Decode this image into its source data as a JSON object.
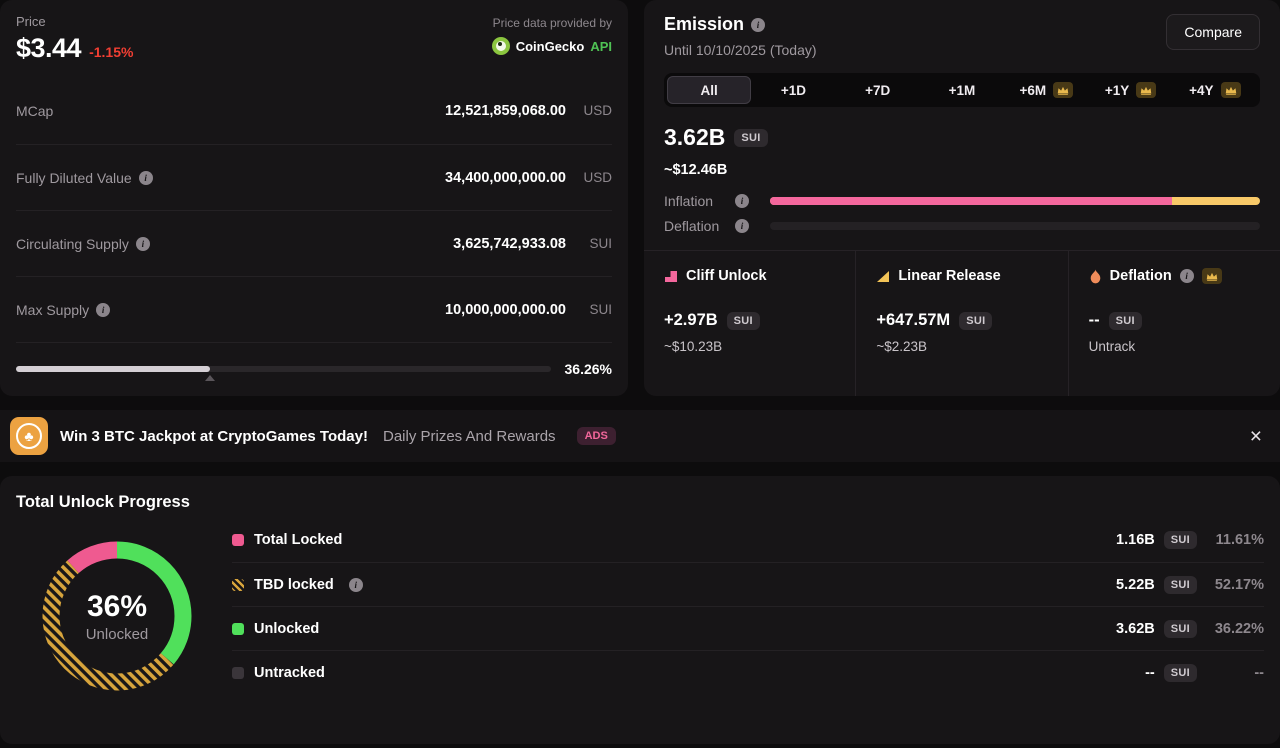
{
  "colors": {
    "pink": "#f4679d",
    "yellow": "#f8c968",
    "green": "#50e05b",
    "gold": "#d7a43c",
    "red": "#f23f33",
    "ads_pink": "#f2679b",
    "api_green": "#4fc254"
  },
  "price_card": {
    "label": "Price",
    "value": "$3.44",
    "change": "-1.15%",
    "provider": {
      "note": "Price data provided by",
      "name": "CoinGecko",
      "suffix": "API"
    },
    "rows": [
      {
        "label": "MCap",
        "value": "12,521,859,068.00",
        "unit": "USD"
      },
      {
        "label": "Fully Diluted Value",
        "value": "34,400,000,000.00",
        "unit": "USD"
      },
      {
        "label": "Circulating Supply",
        "value": "3,625,742,933.08",
        "unit": "SUI"
      },
      {
        "label": "Max Supply",
        "value": "10,000,000,000.00",
        "unit": "SUI"
      }
    ],
    "progress": {
      "percent": 36.26,
      "label": "36.26%"
    }
  },
  "emission_card": {
    "title": "Emission",
    "subtitle": "Until 10/10/2025 (Today)",
    "compare_label": "Compare",
    "tabs": [
      {
        "label": "All",
        "selected": true,
        "premium": false
      },
      {
        "label": "+1D",
        "selected": false,
        "premium": false
      },
      {
        "label": "+7D",
        "selected": false,
        "premium": false
      },
      {
        "label": "+1M",
        "selected": false,
        "premium": false
      },
      {
        "label": "+6M",
        "selected": false,
        "premium": true
      },
      {
        "label": "+1Y",
        "selected": false,
        "premium": true
      },
      {
        "label": "+4Y",
        "selected": false,
        "premium": true
      }
    ],
    "amount": "3.62B",
    "unit": "SUI",
    "usd": "~$12.46B",
    "inflation_label": "Inflation",
    "deflation_label": "Deflation",
    "inflation_bar": {
      "pink_percent": 82,
      "yellow_percent": 18
    },
    "stats": [
      {
        "title": "Cliff Unlock",
        "value": "+2.97B",
        "unit": "SUI",
        "usd": "~$10.23B"
      },
      {
        "title": "Linear Release",
        "value": "+647.57M",
        "unit": "SUI",
        "usd": "~$2.23B"
      },
      {
        "title": "Deflation",
        "value": "--",
        "unit": "SUI",
        "usd": "Untrack"
      }
    ]
  },
  "ad_banner": {
    "headline": "Win 3 BTC Jackpot at CryptoGames Today!",
    "subtext": "Daily Prizes And Rewards",
    "badge": "ADS"
  },
  "unlock_progress": {
    "title": "Total Unlock Progress",
    "donut": {
      "center_value": "36%",
      "center_label": "Unlocked",
      "segments": [
        {
          "name": "Unlocked",
          "percent": 36.22,
          "style": "green"
        },
        {
          "name": "TBD locked",
          "percent": 52.17,
          "style": "hatch"
        },
        {
          "name": "Total Locked",
          "percent": 11.61,
          "style": "pink"
        }
      ]
    },
    "rows": [
      {
        "label": "Total Locked",
        "value": "1.16B",
        "unit": "SUI",
        "percent": "11.61%"
      },
      {
        "label": "TBD locked",
        "value": "5.22B",
        "unit": "SUI",
        "percent": "52.17%"
      },
      {
        "label": "Unlocked",
        "value": "3.62B",
        "unit": "SUI",
        "percent": "36.22%"
      },
      {
        "label": "Untracked",
        "value": "--",
        "unit": "SUI",
        "percent": "--"
      }
    ]
  }
}
